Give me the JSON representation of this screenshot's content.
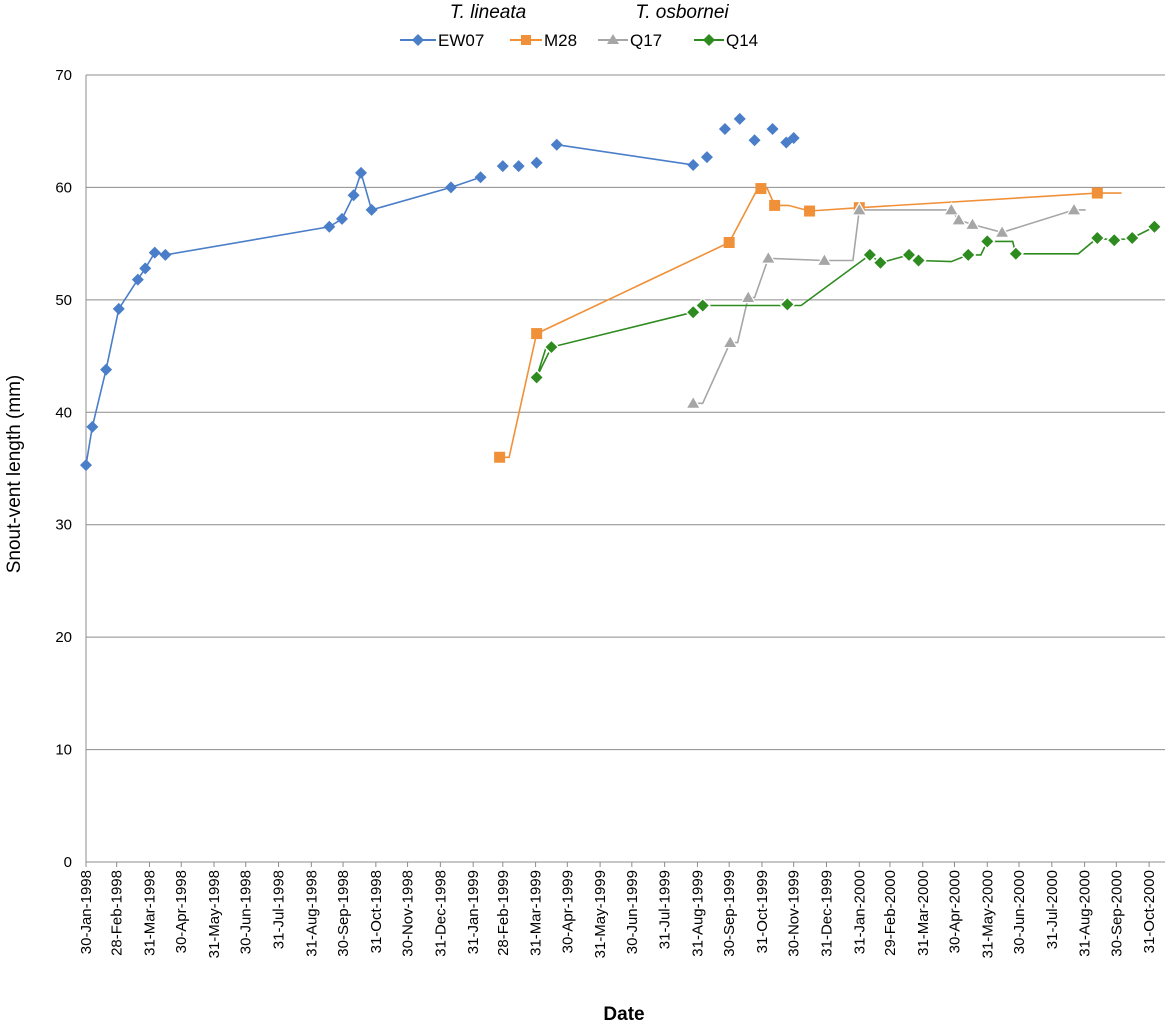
{
  "chart_data": {
    "type": "line",
    "title": "",
    "xlabel": "Date",
    "ylabel": "Snout-vent length (mm)",
    "ylim": [
      0,
      70
    ],
    "yticks": [
      "0",
      "10",
      "20",
      "30",
      "40",
      "50",
      "60",
      "70"
    ],
    "xlim": [
      "1998-01-30",
      "2000-11-15"
    ],
    "x_tick_labels": [
      "30-Jan-1998",
      "28-Feb-1998",
      "31-Mar-1998",
      "30-Apr-1998",
      "31-May-1998",
      "30-Jun-1998",
      "31-Jul-1998",
      "31-Aug-1998",
      "30-Sep-1998",
      "31-Oct-1998",
      "30-Nov-1998",
      "31-Dec-1998",
      "31-Jan-1999",
      "28-Feb-1999",
      "31-Mar-1999",
      "30-Apr-1999",
      "31-May-1999",
      "30-Jun-1999",
      "31-Jul-1999",
      "31-Aug-1999",
      "30-Sep-1999",
      "31-Oct-1999",
      "30-Nov-1999",
      "31-Dec-1999",
      "31-Jan-2000",
      "29-Feb-2000",
      "31-Mar-2000",
      "30-Apr-2000",
      "31-May-2000",
      "30-Jun-2000",
      "31-Jul-2000",
      "31-Aug-2000",
      "30-Sep-2000",
      "31-Oct-2000"
    ],
    "grid": "horizontal",
    "legend_position": "top",
    "legend_groups": [
      {
        "title": "T. lineata",
        "series": [
          "EW07",
          "M28"
        ]
      },
      {
        "title": "T. osbornei",
        "series": [
          "Q17",
          "Q14"
        ]
      }
    ],
    "series": [
      {
        "name": "EW07",
        "color": "#4a7ec9",
        "marker": "diamond",
        "segments": [
          [
            [
              "1998-01-30",
              35.3
            ],
            [
              "1998-02-05",
              38.7
            ],
            [
              "1998-02-18",
              43.8
            ],
            [
              "1998-03-02",
              49.2
            ],
            [
              "1998-03-20",
              51.8
            ],
            [
              "1998-03-27",
              52.8
            ],
            [
              "1998-04-05",
              54.2
            ],
            [
              "1998-04-15",
              54.0
            ],
            [
              "1998-09-17",
              56.5
            ],
            [
              "1998-09-29",
              57.2
            ],
            [
              "1998-10-10",
              59.3
            ],
            [
              "1998-10-17",
              61.3
            ],
            [
              "1998-10-27",
              58.0
            ],
            [
              "1999-01-10",
              60.0
            ],
            [
              "1999-02-07",
              60.9
            ]
          ]
        ],
        "points_only": [
          [
            "1999-02-28",
            61.9
          ],
          [
            "1999-03-15",
            61.9
          ],
          [
            "1999-04-01",
            62.2
          ],
          [
            "1999-04-20",
            63.8
          ],
          [
            "1999-08-27",
            62.0
          ],
          [
            "1999-09-09",
            62.7
          ],
          [
            "1999-09-26",
            65.2
          ],
          [
            "1999-10-10",
            66.1
          ],
          [
            "1999-10-24",
            64.2
          ],
          [
            "1999-11-10",
            65.2
          ],
          [
            "1999-11-23",
            64.0
          ],
          [
            "1999-11-30",
            64.4
          ]
        ],
        "line_points": [
          [
            "1999-04-20",
            63.8
          ],
          [
            "1999-08-27",
            62.0
          ]
        ]
      },
      {
        "name": "M28",
        "color": "#f0913a",
        "marker": "square",
        "points": [
          [
            "1999-02-25",
            36.0
          ],
          [
            "1999-04-01",
            47.0
          ],
          [
            "1999-09-30",
            55.1
          ],
          [
            "1999-10-30",
            59.9
          ],
          [
            "1999-11-12",
            58.4
          ],
          [
            "1999-12-15",
            57.9
          ],
          [
            "2000-01-31",
            58.2
          ],
          [
            "2000-09-12",
            59.5
          ]
        ],
        "steps": [
          [
            "1999-02-25",
            36.0
          ],
          [
            "1999-03-06",
            36.0
          ],
          [
            "1999-04-01",
            47.0
          ],
          [
            "1999-09-30",
            55.1
          ],
          [
            "1999-10-27",
            59.9
          ],
          [
            "1999-11-05",
            59.9
          ],
          [
            "1999-11-12",
            58.4
          ],
          [
            "1999-11-25",
            58.4
          ],
          [
            "1999-12-15",
            57.9
          ],
          [
            "2000-01-31",
            58.2
          ],
          [
            "2000-09-12",
            59.5
          ],
          [
            "2000-10-05",
            59.5
          ]
        ]
      },
      {
        "name": "Q17",
        "color": "#a6a6a6",
        "marker": "triangle",
        "points": [
          [
            "1999-08-27",
            40.8
          ],
          [
            "1999-10-01",
            46.2
          ],
          [
            "1999-10-18",
            50.2
          ],
          [
            "1999-11-06",
            53.7
          ],
          [
            "1999-12-29",
            53.5
          ],
          [
            "2000-01-31",
            58.0
          ],
          [
            "2000-04-27",
            58.0
          ],
          [
            "2000-05-04",
            57.1
          ],
          [
            "2000-05-17",
            56.7
          ],
          [
            "2000-06-14",
            56.0
          ],
          [
            "2000-08-21",
            58.0
          ]
        ],
        "steps": [
          [
            "1999-08-27",
            40.8
          ],
          [
            "1999-09-05",
            40.8
          ],
          [
            "1999-10-01",
            46.2
          ],
          [
            "1999-10-08",
            46.2
          ],
          [
            "1999-10-18",
            50.2
          ],
          [
            "1999-10-24",
            50.2
          ],
          [
            "1999-11-06",
            53.7
          ],
          [
            "1999-12-29",
            53.5
          ],
          [
            "2000-01-25",
            53.5
          ],
          [
            "2000-01-31",
            58.0
          ],
          [
            "2000-04-27",
            58.0
          ],
          [
            "2000-05-04",
            57.1
          ],
          [
            "2000-05-17",
            56.7
          ],
          [
            "2000-06-14",
            56.0
          ],
          [
            "2000-08-21",
            58.0
          ],
          [
            "2000-09-01",
            58.0
          ]
        ]
      },
      {
        "name": "Q14",
        "color": "#2e8b1f",
        "marker": "diamond",
        "points": [
          [
            "1999-04-01",
            43.1
          ],
          [
            "1999-04-15",
            45.8
          ],
          [
            "1999-08-27",
            48.9
          ],
          [
            "1999-09-05",
            49.5
          ],
          [
            "1999-11-24",
            49.6
          ],
          [
            "2000-02-10",
            54.0
          ],
          [
            "2000-02-20",
            53.3
          ],
          [
            "2000-03-18",
            54.0
          ],
          [
            "2000-03-27",
            53.5
          ],
          [
            "2000-05-13",
            54.0
          ],
          [
            "2000-05-31",
            55.2
          ],
          [
            "2000-06-27",
            54.1
          ],
          [
            "2000-09-12",
            55.5
          ],
          [
            "2000-09-28",
            55.3
          ],
          [
            "2000-10-15",
            55.5
          ],
          [
            "2000-11-05",
            56.5
          ]
        ],
        "steps": [
          [
            "1999-04-01",
            43.1
          ],
          [
            "1999-04-15",
            45.8
          ],
          [
            "1999-04-01",
            43.1
          ],
          [
            "1999-04-10",
            45.8
          ],
          [
            "1999-04-15",
            45.8
          ],
          [
            "1999-08-27",
            48.9
          ],
          [
            "1999-09-05",
            49.5
          ],
          [
            "1999-12-07",
            49.5
          ],
          [
            "2000-02-10",
            54.0
          ],
          [
            "2000-02-20",
            53.3
          ],
          [
            "2000-03-18",
            54.0
          ],
          [
            "2000-03-27",
            53.5
          ],
          [
            "2000-04-27",
            53.4
          ],
          [
            "2000-05-13",
            54.0
          ],
          [
            "2000-05-25",
            54.0
          ],
          [
            "2000-05-31",
            55.2
          ],
          [
            "2000-06-24",
            55.2
          ],
          [
            "2000-06-27",
            54.1
          ],
          [
            "2000-08-25",
            54.1
          ],
          [
            "2000-09-12",
            55.5
          ],
          [
            "2000-09-28",
            55.3
          ],
          [
            "2000-10-15",
            55.5
          ],
          [
            "2000-11-05",
            56.5
          ]
        ]
      }
    ]
  }
}
